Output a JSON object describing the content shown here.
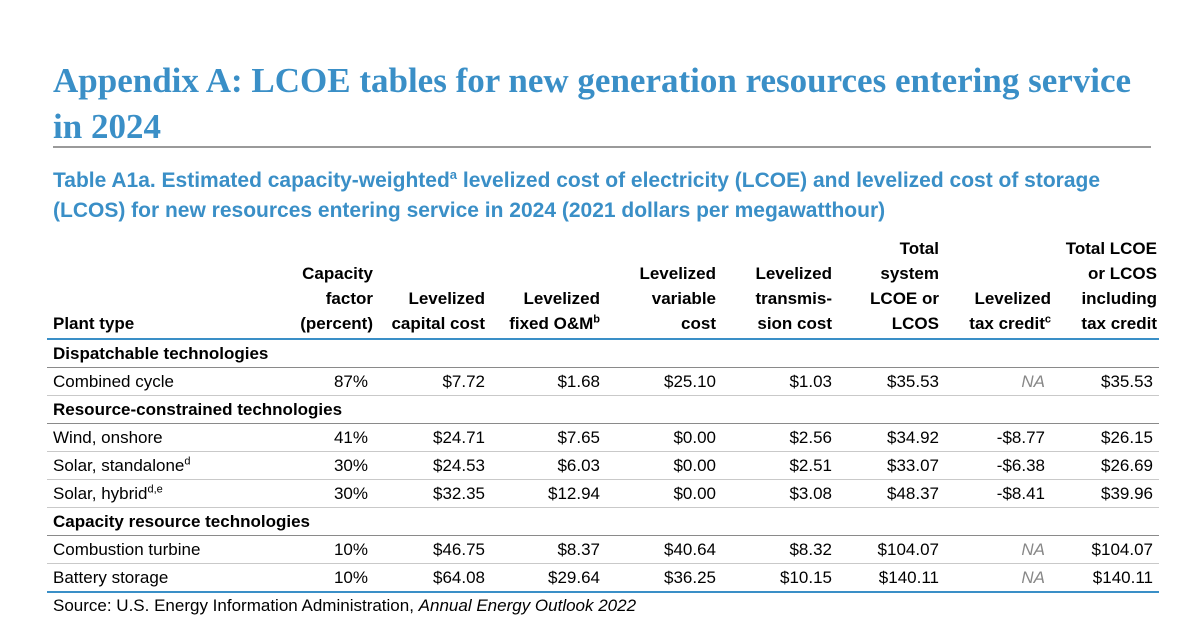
{
  "page_title": "Appendix A: LCOE tables for new generation resources entering service in 2024",
  "caption": {
    "part1": "Table A1a. Estimated capacity-weighted",
    "footnote_a": "a",
    "part2": " levelized cost of electricity (LCOE) and levelized cost of storage (LCOS) for new resources entering service in 2024 (2021 dollars per megawatthour)"
  },
  "columns": [
    {
      "label": "Plant type"
    },
    {
      "label": "Capacity factor (percent)"
    },
    {
      "label": "Levelized capital cost"
    },
    {
      "label": "Levelized fixed O&M",
      "footnote": "b"
    },
    {
      "label": "Levelized variable cost"
    },
    {
      "label": "Levelized transmis-sion cost"
    },
    {
      "label": "Total system LCOE or LCOS"
    },
    {
      "label": "Levelized tax credit",
      "footnote": "c"
    },
    {
      "label": "Total LCOE or LCOS including tax credit"
    }
  ],
  "sections": [
    {
      "title": "Dispatchable technologies",
      "rows": [
        {
          "name": "Combined cycle",
          "footnote": "",
          "values": [
            "87%",
            "$7.72",
            "$1.68",
            "$25.10",
            "$1.03",
            "$35.53",
            "NA",
            "$35.53"
          ]
        }
      ]
    },
    {
      "title": "Resource-constrained technologies",
      "rows": [
        {
          "name": "Wind, onshore",
          "footnote": "",
          "values": [
            "41%",
            "$24.71",
            "$7.65",
            "$0.00",
            "$2.56",
            "$34.92",
            "-$8.77",
            "$26.15"
          ]
        },
        {
          "name": "Solar, standalone",
          "footnote": "d",
          "values": [
            "30%",
            "$24.53",
            "$6.03",
            "$0.00",
            "$2.51",
            "$33.07",
            "-$6.38",
            "$26.69"
          ]
        },
        {
          "name": "Solar, hybrid",
          "footnote": "d,e",
          "values": [
            "30%",
            "$32.35",
            "$12.94",
            "$0.00",
            "$3.08",
            "$48.37",
            "-$8.41",
            "$39.96"
          ]
        }
      ]
    },
    {
      "title": "Capacity resource technologies",
      "rows": [
        {
          "name": "Combustion turbine",
          "footnote": "",
          "values": [
            "10%",
            "$46.75",
            "$8.37",
            "$40.64",
            "$8.32",
            "$104.07",
            "NA",
            "$104.07"
          ]
        },
        {
          "name": "Battery storage",
          "footnote": "",
          "values": [
            "10%",
            "$64.08",
            "$29.64",
            "$36.25",
            "$10.15",
            "$140.11",
            "NA",
            "$140.11"
          ]
        }
      ]
    }
  ],
  "source": {
    "prefix": "Source: U.S. Energy Information Administration, ",
    "publication": "Annual Energy Outlook 2022"
  }
}
